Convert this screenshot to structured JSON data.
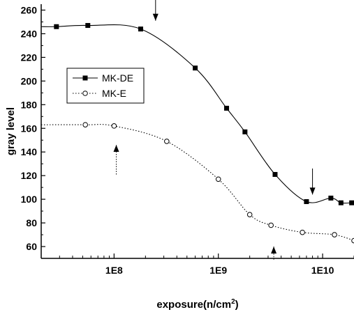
{
  "chart_data": {
    "type": "line",
    "title": "",
    "xlabel": "exposure(n/cm",
    "xlabel_sup": "2",
    "xlabel_close": ")",
    "ylabel": "gray level",
    "xscale": "log",
    "xlim": [
      20000000.0,
      20000000000.0
    ],
    "ylim": [
      50,
      265
    ],
    "xticks": [
      {
        "value": 100000000.0,
        "label": "1E8"
      },
      {
        "value": 1000000000.0,
        "label": "1E9"
      },
      {
        "value": 10000000000.0,
        "label": "1E10"
      }
    ],
    "yticks": [
      60,
      80,
      100,
      120,
      140,
      160,
      180,
      200,
      220,
      240,
      260
    ],
    "ytick_labels": [
      "60",
      "80",
      "100",
      "120",
      "140",
      "160",
      "180",
      "200",
      "220",
      "240",
      "260"
    ],
    "grid": false,
    "legend": "upper-left",
    "series": [
      {
        "name": "MK-DE",
        "marker": "filled-square",
        "line": "solid",
        "color": "#000000",
        "x": [
          28000000.0,
          56000000.0,
          180000000.0,
          600000000.0,
          1200000000.0,
          1800000000.0,
          3500000000.0,
          7000000000.0,
          12000000000.0,
          15000000000.0,
          19000000000.0
        ],
        "y": [
          246,
          247,
          244,
          211,
          177,
          157,
          121,
          98,
          101,
          97,
          97
        ]
      },
      {
        "name": "MK-E",
        "marker": "open-circle",
        "line": "dotted",
        "color": "#000000",
        "x": [
          53000000.0,
          100000000.0,
          320000000.0,
          1000000000.0,
          2000000000.0,
          3200000000.0,
          6400000000.0,
          13000000000.0,
          20000000000.0
        ],
        "y": [
          163,
          162,
          149,
          117,
          87,
          78,
          72,
          70,
          65
        ]
      }
    ],
    "annotations": [
      {
        "type": "arrow-down",
        "x": 250000000.0,
        "y_from": 290,
        "y_to": 251
      },
      {
        "type": "arrow-down",
        "x": 8000000000.0,
        "y_from": 126,
        "y_to": 104
      },
      {
        "type": "dotted-arrow-up",
        "x": 105000000.0,
        "y_from": 121,
        "y_to": 146
      },
      {
        "type": "dotted-arrow-up",
        "x": 3400000000.0,
        "y_from": 49,
        "y_to": 60
      }
    ]
  }
}
